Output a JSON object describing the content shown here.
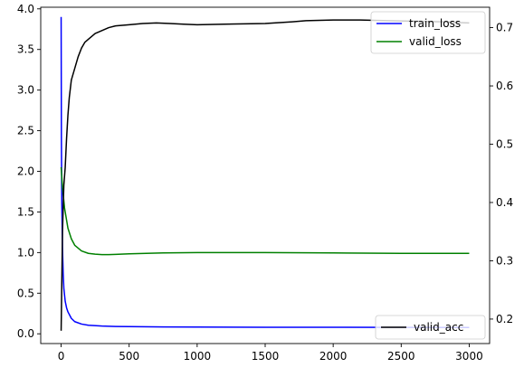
{
  "chart_data": {
    "type": "line",
    "title": "",
    "xlabel": "",
    "ylabel": "",
    "y2label": "",
    "grid": false,
    "xlim": [
      -150,
      3150
    ],
    "ylim": [
      -0.12,
      4.02
    ],
    "y2lim": [
      0.158,
      0.735
    ],
    "xticks": [
      0,
      500,
      1000,
      1500,
      2000,
      2500,
      3000
    ],
    "xtick_labels": [
      "0",
      "500",
      "1000",
      "1500",
      "2000",
      "2500",
      "3000"
    ],
    "yticks": [
      0.0,
      0.5,
      1.0,
      1.5,
      2.0,
      2.5,
      3.0,
      3.5,
      4.0
    ],
    "ytick_labels": [
      "0.0",
      "0.5",
      "1.0",
      "1.5",
      "2.0",
      "2.5",
      "3.0",
      "3.5",
      "4.0"
    ],
    "y2ticks": [
      0.2,
      0.3,
      0.4,
      0.5,
      0.6,
      0.7
    ],
    "y2tick_labels": [
      "0.2",
      "0.3",
      "0.4",
      "0.5",
      "0.6",
      "0.7"
    ],
    "legend_left_axis": {
      "placement": "upper right",
      "entries": [
        {
          "name": "train_loss",
          "color": "#0000ff"
        },
        {
          "name": "valid_loss",
          "color": "#008000"
        }
      ]
    },
    "legend_right_axis": {
      "placement": "lower right",
      "entries": [
        {
          "name": "valid_acc",
          "color": "#000000"
        }
      ]
    },
    "series": [
      {
        "name": "train_loss",
        "axis": "left",
        "color": "#0000ff",
        "x": [
          0,
          2,
          5,
          10,
          15,
          20,
          30,
          40,
          50,
          75,
          100,
          150,
          200,
          300,
          400,
          500,
          750,
          1000,
          1500,
          2000,
          2500,
          3000
        ],
        "y": [
          3.9,
          2.4,
          1.6,
          1.05,
          0.75,
          0.56,
          0.4,
          0.32,
          0.27,
          0.19,
          0.15,
          0.12,
          0.105,
          0.095,
          0.09,
          0.088,
          0.085,
          0.083,
          0.081,
          0.08,
          0.079,
          0.078
        ]
      },
      {
        "name": "valid_loss",
        "axis": "left",
        "color": "#008000",
        "x": [
          0,
          10,
          25,
          50,
          75,
          100,
          150,
          200,
          250,
          300,
          350,
          400,
          500,
          750,
          1000,
          1500,
          2000,
          2500,
          3000
        ],
        "y": [
          2.05,
          1.8,
          1.55,
          1.3,
          1.17,
          1.09,
          1.02,
          0.99,
          0.98,
          0.975,
          0.975,
          0.978,
          0.985,
          0.995,
          1.0,
          1.0,
          0.995,
          0.99,
          0.99
        ]
      },
      {
        "name": "valid_acc",
        "axis": "right",
        "color": "#000000",
        "x": [
          0,
          10,
          20,
          30,
          40,
          50,
          60,
          75,
          100,
          125,
          150,
          175,
          200,
          250,
          300,
          350,
          400,
          500,
          600,
          700,
          800,
          900,
          1000,
          1200,
          1500,
          1700,
          1800,
          2000,
          2200,
          2400,
          2600,
          2800,
          3000
        ],
        "y": [
          0.18,
          0.35,
          0.43,
          0.46,
          0.51,
          0.55,
          0.58,
          0.61,
          0.63,
          0.65,
          0.665,
          0.675,
          0.68,
          0.69,
          0.695,
          0.7,
          0.703,
          0.705,
          0.707,
          0.708,
          0.707,
          0.706,
          0.705,
          0.706,
          0.707,
          0.71,
          0.712,
          0.713,
          0.713,
          0.712,
          0.711,
          0.71,
          0.708
        ]
      }
    ]
  }
}
